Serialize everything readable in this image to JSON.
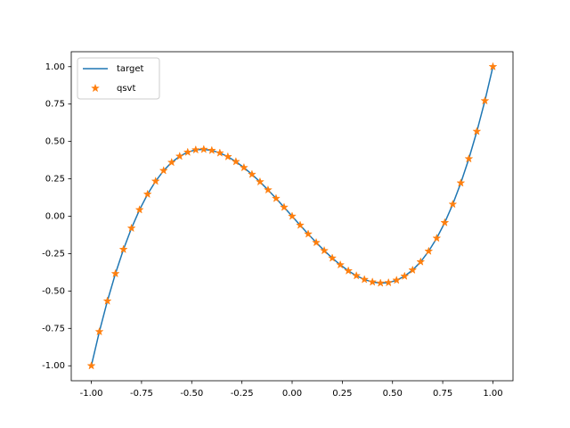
{
  "chart_data": {
    "type": "line",
    "x": [
      -1,
      -0.96,
      -0.92,
      -0.88,
      -0.84,
      -0.8,
      -0.76,
      -0.72,
      -0.68,
      -0.64,
      -0.6,
      -0.56,
      -0.52,
      -0.48,
      -0.44,
      -0.4,
      -0.36,
      -0.32,
      -0.28,
      -0.24,
      -0.2,
      -0.16,
      -0.12,
      -0.08,
      -0.04,
      0,
      0.04,
      0.08,
      0.12,
      0.16,
      0.2,
      0.24,
      0.28,
      0.32,
      0.36,
      0.4,
      0.44,
      0.48,
      0.52,
      0.56,
      0.6,
      0.64,
      0.68,
      0.72,
      0.76,
      0.8,
      0.84,
      0.88,
      0.92,
      0.96,
      1
    ],
    "series": [
      {
        "name": "target",
        "color": "#1f77b4",
        "style": "line",
        "values": [
          -1,
          -0.772,
          -0.567,
          -0.384,
          -0.222,
          -0.08,
          0.043,
          0.147,
          0.234,
          0.305,
          0.36,
          0.401,
          0.428,
          0.444,
          0.447,
          0.44,
          0.423,
          0.398,
          0.365,
          0.325,
          0.28,
          0.23,
          0.176,
          0.119,
          0.06,
          0,
          -0.06,
          -0.119,
          -0.176,
          -0.23,
          -0.28,
          -0.325,
          -0.365,
          -0.398,
          -0.423,
          -0.44,
          -0.447,
          -0.444,
          -0.428,
          -0.401,
          -0.36,
          -0.305,
          -0.234,
          -0.147,
          -0.043,
          0.08,
          0.222,
          0.384,
          0.567,
          0.772,
          1
        ]
      },
      {
        "name": "qsvt",
        "color": "#ff7f0e",
        "style": "star",
        "values": [
          -1,
          -0.772,
          -0.567,
          -0.384,
          -0.222,
          -0.08,
          0.043,
          0.147,
          0.234,
          0.305,
          0.36,
          0.401,
          0.428,
          0.444,
          0.447,
          0.44,
          0.423,
          0.398,
          0.365,
          0.325,
          0.28,
          0.23,
          0.176,
          0.119,
          0.06,
          0,
          -0.06,
          -0.119,
          -0.176,
          -0.23,
          -0.28,
          -0.325,
          -0.365,
          -0.398,
          -0.423,
          -0.44,
          -0.447,
          -0.444,
          -0.428,
          -0.401,
          -0.36,
          -0.305,
          -0.234,
          -0.147,
          -0.043,
          0.08,
          0.222,
          0.384,
          0.567,
          0.772,
          1
        ]
      }
    ],
    "xlim": [
      -1.1,
      1.1
    ],
    "ylim": [
      -1.1,
      1.1
    ],
    "xticks": [
      {
        "value": -1,
        "label": "-1.00"
      },
      {
        "value": -0.75,
        "label": "-0.75"
      },
      {
        "value": -0.5,
        "label": "-0.50"
      },
      {
        "value": -0.25,
        "label": "-0.25"
      },
      {
        "value": 0,
        "label": "0.00"
      },
      {
        "value": 0.25,
        "label": "0.25"
      },
      {
        "value": 0.5,
        "label": "0.50"
      },
      {
        "value": 0.75,
        "label": "0.75"
      },
      {
        "value": 1,
        "label": "1.00"
      }
    ],
    "yticks": [
      {
        "value": -1,
        "label": "-1.00"
      },
      {
        "value": -0.75,
        "label": "-0.75"
      },
      {
        "value": -0.5,
        "label": "-0.50"
      },
      {
        "value": -0.25,
        "label": "-0.25"
      },
      {
        "value": 0,
        "label": "0.00"
      },
      {
        "value": 0.25,
        "label": "0.25"
      },
      {
        "value": 0.5,
        "label": "0.50"
      },
      {
        "value": 0.75,
        "label": "0.75"
      },
      {
        "value": 1,
        "label": "1.00"
      }
    ],
    "legend": "upper left"
  }
}
